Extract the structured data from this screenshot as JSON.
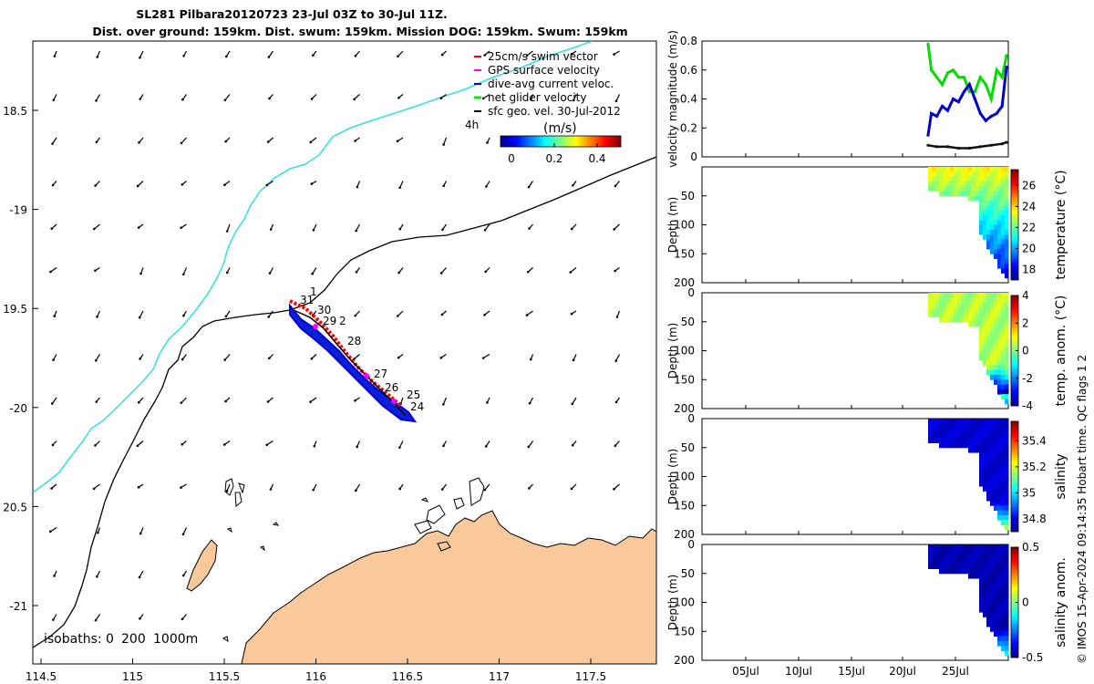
{
  "title": {
    "line1": "SL281 Pilbara20120723 23-Jul 03Z to 30-Jul 11Z.",
    "line2": "Dist. over ground: 159km. Dist. swum: 159km. Mission DOG: 159km. Swum: 159km"
  },
  "legend": {
    "items": [
      {
        "label": "25cm/s swim vector",
        "color": "#ff0000"
      },
      {
        "label": "GPS surface velocity",
        "color": "#ff00ff"
      },
      {
        "label": "dive-avg current veloc.",
        "color": "#0000ff"
      },
      {
        "label": "net glider velocity",
        "color": "#00ee00"
      },
      {
        "label": "sfc geo. vel. 30-Jul-2012",
        "color": "#000000"
      }
    ],
    "hour_label": "4h",
    "colorbar_label": "(m/s)",
    "colorbar_ticks": [
      "0",
      "0.2",
      "0.4"
    ]
  },
  "map": {
    "lon_ticks": [
      "114.5",
      "115",
      "115.5",
      "116",
      "116.5",
      "117",
      "117.5"
    ],
    "lat_ticks": [
      "18.5",
      "-19",
      "19.5",
      "-20",
      "20.5",
      "-21"
    ],
    "isobaths_label": "isobaths: 0",
    "isobath_values": [
      "200",
      "1000m"
    ],
    "day_labels": [
      "1",
      "31",
      "30",
      "29",
      "2",
      "28",
      "27",
      "26",
      "25",
      "24"
    ],
    "land_color": "#f9c99b",
    "isobath_1000_color": "#33e0e0"
  },
  "chart_data": [
    {
      "type": "line",
      "title": "",
      "xlabel": "",
      "ylabel": "velocity magnitude (m/s)",
      "ylim": [
        0,
        0.8
      ],
      "yticks": [
        "0",
        "0.2",
        "0.4",
        "0.6",
        "0.8"
      ],
      "series": [
        {
          "name": "net glider velocity",
          "color": "#00dd00",
          "x": [
            23.2,
            23.5,
            24,
            24.5,
            25,
            25.5,
            26,
            26.5,
            27,
            27.5,
            28,
            28.5,
            29,
            29.5,
            30,
            30.4
          ],
          "values": [
            0.78,
            0.6,
            0.55,
            0.5,
            0.58,
            0.6,
            0.55,
            0.55,
            0.45,
            0.45,
            0.55,
            0.5,
            0.4,
            0.6,
            0.55,
            0.7
          ]
        },
        {
          "name": "dive-avg current veloc.",
          "color": "#0000cc",
          "x": [
            23.2,
            23.5,
            24,
            24.5,
            25,
            25.5,
            26,
            26.5,
            27,
            27.5,
            28,
            28.5,
            29,
            29.5,
            30,
            30.4
          ],
          "values": [
            0.15,
            0.3,
            0.28,
            0.35,
            0.32,
            0.4,
            0.38,
            0.45,
            0.5,
            0.4,
            0.3,
            0.25,
            0.28,
            0.3,
            0.35,
            0.62
          ]
        },
        {
          "name": "sfc geo. vel. 30-Jul-2012",
          "color": "#111111",
          "x": [
            23.2,
            24,
            25,
            26,
            27,
            28,
            29,
            30,
            30.4
          ],
          "values": [
            0.08,
            0.07,
            0.07,
            0.06,
            0.06,
            0.07,
            0.08,
            0.09,
            0.1
          ]
        }
      ]
    },
    {
      "type": "heatmap",
      "ylabel": "Depth (m)",
      "ylim": [
        200,
        0
      ],
      "yticks": [
        "50",
        "100",
        "150",
        "200"
      ],
      "colorbar_label": "temperature (°C)",
      "colorbar_ticks": [
        "18",
        "20",
        "22",
        "24",
        "26"
      ],
      "clim": [
        17,
        27.5
      ],
      "values_range_shown": [
        18,
        26
      ]
    },
    {
      "type": "heatmap",
      "ylabel": "Depth (m)",
      "ylim": [
        200,
        0
      ],
      "yticks": [
        "0",
        "50",
        "100",
        "150",
        "200"
      ],
      "colorbar_label": "temp. anom. (°C)",
      "colorbar_ticks": [
        "-4",
        "-2",
        "0",
        "2",
        "4"
      ],
      "clim": [
        -4,
        4
      ]
    },
    {
      "type": "heatmap",
      "ylabel": "Depth (m)",
      "ylim": [
        200,
        0
      ],
      "yticks": [
        "0",
        "50",
        "100",
        "150",
        "200"
      ],
      "colorbar_label": "salinity",
      "colorbar_ticks": [
        "34.8",
        "35",
        "35.2",
        "35.4"
      ],
      "clim": [
        34.7,
        35.55
      ]
    },
    {
      "type": "heatmap",
      "ylabel": "Depth (m)",
      "ylim": [
        200,
        0
      ],
      "yticks": [
        "0",
        "50",
        "100",
        "150",
        "200"
      ],
      "colorbar_label": "salinity anom.",
      "colorbar_ticks": [
        "-0.5",
        "0",
        "0.5"
      ],
      "clim": [
        -0.5,
        0.5
      ]
    }
  ],
  "time_axis": {
    "ticks": [
      "05Jul",
      "10Jul",
      "15Jul",
      "20Jul",
      "25Jul"
    ]
  },
  "footer": "© IMOS 15-Apr-2024 09:14:35 Hobart time. QC flags 1  2"
}
